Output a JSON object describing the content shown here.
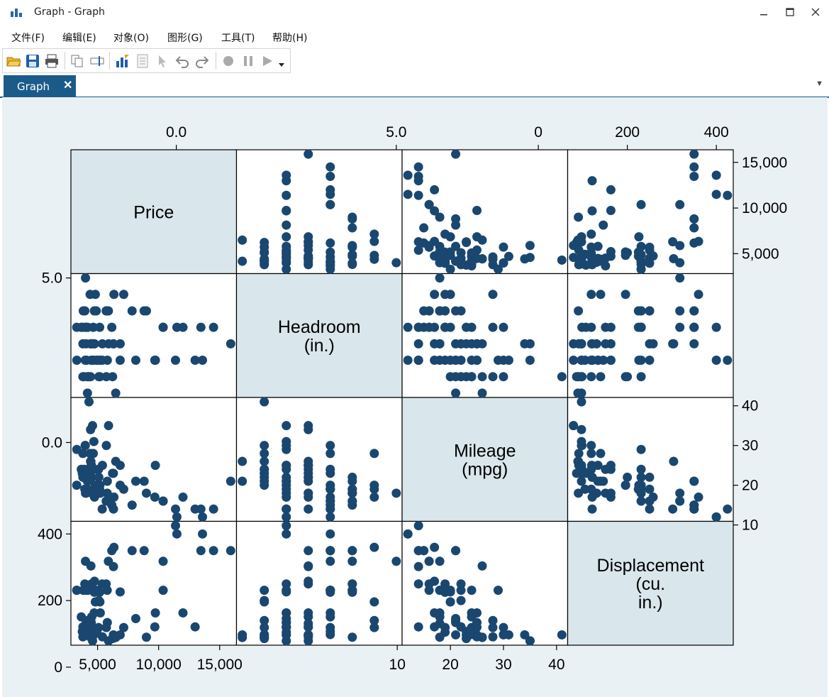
{
  "window": {
    "title": "Graph - Graph"
  },
  "menu": [
    "文件(F)",
    "编辑(E)",
    "对象(O)",
    "图形(G)",
    "工具(T)",
    "帮助(H)"
  ],
  "tabs": [
    {
      "label": "Graph",
      "close": "✕"
    }
  ],
  "colors": {
    "marker": "#1a476f",
    "diag": "#d9e6eb",
    "graph_bg": "#eaf1f4",
    "tab": "#1b5b8a"
  },
  "chart_data": {
    "type": "scatter",
    "layout": "matrix",
    "variables": [
      {
        "label": [
          "Price"
        ],
        "ticks": [
          5000,
          10000,
          15000
        ],
        "tick_labels": [
          "5,000",
          "10,000",
          "15,000"
        ],
        "range": [
          3291,
          15906
        ]
      },
      {
        "label": [
          "Headroom",
          "(in.)"
        ],
        "ticks": [
          0,
          5
        ],
        "tick_labels": [
          "0.0",
          "5.0"
        ],
        "range": [
          1.5,
          5.0
        ]
      },
      {
        "label": [
          "Mileage",
          "(mpg)"
        ],
        "ticks": [
          10,
          20,
          30,
          40
        ],
        "tick_labels": [
          "10",
          "20",
          "30",
          "40"
        ],
        "range": [
          12,
          41
        ]
      },
      {
        "label": [
          "Displacement",
          "(cu.",
          "in.)"
        ],
        "ticks": [
          0,
          200,
          400
        ],
        "tick_labels": [
          "0",
          "200",
          "400"
        ],
        "range": [
          79,
          425
        ]
      }
    ],
    "observations": [
      [
        4099,
        2.5,
        22,
        121
      ],
      [
        4749,
        3.0,
        17,
        258
      ],
      [
        3799,
        3.0,
        22,
        121
      ],
      [
        4816,
        4.5,
        20,
        196
      ],
      [
        7827,
        4.0,
        15,
        350
      ],
      [
        5788,
        4.0,
        18,
        231
      ],
      [
        4453,
        3.0,
        26,
        304
      ],
      [
        5189,
        2.0,
        20,
        196
      ],
      [
        10372,
        3.5,
        16,
        231
      ],
      [
        4082,
        3.5,
        19,
        231
      ],
      [
        11385,
        2.5,
        14,
        425
      ],
      [
        14500,
        3.5,
        14,
        350
      ],
      [
        15906,
        3.0,
        21,
        350
      ],
      [
        3299,
        2.5,
        29,
        231
      ],
      [
        5705,
        4.0,
        16,
        250
      ],
      [
        4504,
        3.0,
        22,
        250
      ],
      [
        5104,
        2.0,
        22,
        200
      ],
      [
        3667,
        3.5,
        24,
        151
      ],
      [
        3955,
        4.0,
        19,
        250
      ],
      [
        3984,
        3.5,
        30,
        98
      ],
      [
        4010,
        5.0,
        18,
        318
      ],
      [
        5886,
        4.0,
        16,
        318
      ],
      [
        6342,
        4.5,
        17,
        360
      ],
      [
        4389,
        4.5,
        28,
        140
      ],
      [
        4187,
        2.0,
        21,
        140
      ],
      [
        11497,
        3.5,
        12,
        400
      ],
      [
        13594,
        2.5,
        12,
        400
      ],
      [
        13466,
        3.5,
        14,
        350
      ],
      [
        3829,
        4.0,
        22,
        231
      ],
      [
        5379,
        2.5,
        14,
        250
      ],
      [
        6165,
        3.5,
        15,
        350
      ],
      [
        4516,
        3.0,
        18,
        151
      ],
      [
        6303,
        3.0,
        14,
        302
      ],
      [
        3291,
        3.5,
        20,
        231
      ],
      [
        8814,
        4.0,
        21,
        350
      ],
      [
        5172,
        3.5,
        19,
        225
      ],
      [
        4733,
        4.0,
        19,
        225
      ],
      [
        4890,
        4.0,
        18,
        231
      ],
      [
        4181,
        3.5,
        19,
        231
      ],
      [
        4195,
        2.0,
        24,
        231
      ],
      [
        10371,
        3.5,
        16,
        318
      ],
      [
        4647,
        3.5,
        28,
        119
      ],
      [
        4425,
        3.0,
        34,
        97
      ],
      [
        4482,
        2.5,
        25,
        134
      ],
      [
        6486,
        1.5,
        26,
        89
      ],
      [
        4060,
        3.0,
        18,
        131
      ],
      [
        5798,
        2.5,
        21,
        134
      ],
      [
        4934,
        2.5,
        19,
        105
      ],
      [
        5222,
        2.5,
        18,
        163
      ],
      [
        4723,
        3.0,
        24,
        163
      ],
      [
        4424,
        2.0,
        26,
        90
      ],
      [
        4172,
        1.5,
        21,
        97
      ],
      [
        9690,
        2.5,
        17,
        121
      ],
      [
        6295,
        3.0,
        23,
        97
      ],
      [
        9735,
        2.5,
        25,
        163
      ],
      [
        6229,
        2.0,
        23,
        86
      ],
      [
        4589,
        2.5,
        35,
        79
      ],
      [
        5079,
        2.5,
        24,
        119
      ],
      [
        8129,
        2.5,
        21,
        146
      ],
      [
        4296,
        2.0,
        41,
        97
      ],
      [
        5397,
        3.0,
        25,
        91
      ],
      [
        4697,
        2.5,
        31,
        97
      ],
      [
        6850,
        3.0,
        25,
        97
      ],
      [
        11995,
        3.5,
        17,
        163
      ],
      [
        12990,
        2.5,
        14,
        121
      ],
      [
        3995,
        2.5,
        30,
        97
      ],
      [
        3895,
        2.0,
        24,
        98
      ],
      [
        3798,
        2.0,
        28,
        91
      ],
      [
        3748,
        3.5,
        23,
        107
      ],
      [
        5899,
        3.0,
        35,
        79
      ],
      [
        4499,
        3.0,
        25,
        120
      ],
      [
        6850,
        2.5,
        20,
        226
      ],
      [
        7140,
        4.5,
        19,
        119
      ],
      [
        5719,
        2.0,
        30,
        119
      ],
      [
        9000,
        4.0,
        18,
        90
      ]
    ]
  }
}
